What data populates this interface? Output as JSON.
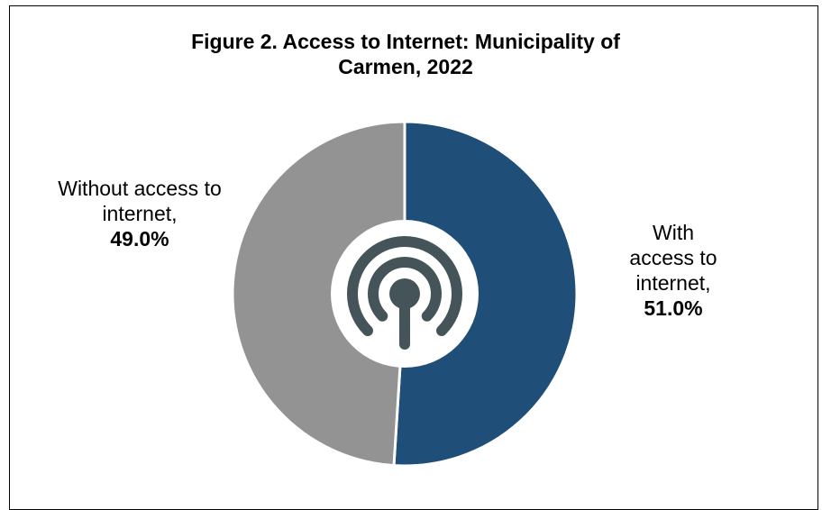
{
  "chart_data": {
    "type": "pie",
    "title_lines": [
      "Figure 2. Access to Internet: Municipality of",
      "Carmen, 2022"
    ],
    "slices": [
      {
        "label_lines": [
          "With",
          "access to",
          "internet,"
        ],
        "value": 51.0,
        "value_label": "51.0%",
        "color": "#1f4e79"
      },
      {
        "label_lines": [
          "Without access to",
          "internet,"
        ],
        "value": 49.0,
        "value_label": "49.0%",
        "color": "#939393"
      }
    ],
    "start_at": "top",
    "direction": "clockwise",
    "center_icon": {
      "name": "broadcast-signal-icon",
      "color": "#445458",
      "background": "#ffffff"
    }
  }
}
